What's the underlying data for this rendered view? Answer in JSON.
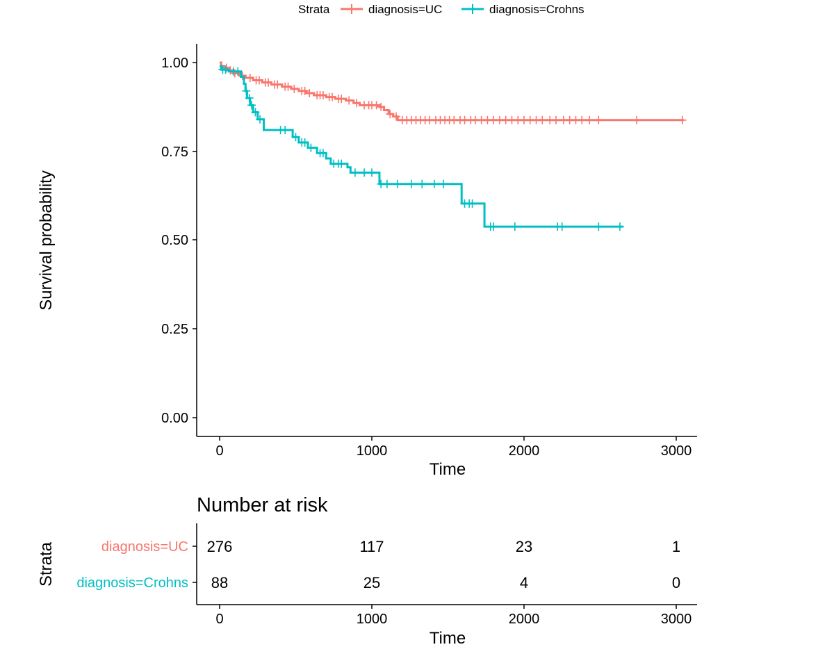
{
  "chart_data": {
    "type": "line",
    "subtype": "kaplan-meier",
    "legend": {
      "title": "Strata",
      "position": "top",
      "entries": [
        "diagnosis=UC",
        "diagnosis=Crohns"
      ]
    },
    "colors": {
      "UC": "#F8766D",
      "Crohns": "#00BFC4"
    },
    "ylabel": "Survival probability",
    "xlabel": "Time",
    "ylim": [
      0,
      1
    ],
    "xlim": [
      0,
      3000
    ],
    "yticks": [
      "0.00",
      "0.25",
      "0.50",
      "0.75",
      "1.00"
    ],
    "xticks": [
      "0",
      "1000",
      "2000",
      "3000"
    ],
    "series": [
      {
        "name": "diagnosis=UC",
        "steps": [
          [
            0,
            1.0
          ],
          [
            10,
            0.99
          ],
          [
            30,
            0.985
          ],
          [
            60,
            0.978
          ],
          [
            90,
            0.97
          ],
          [
            130,
            0.963
          ],
          [
            170,
            0.957
          ],
          [
            220,
            0.95
          ],
          [
            280,
            0.944
          ],
          [
            340,
            0.938
          ],
          [
            410,
            0.932
          ],
          [
            470,
            0.926
          ],
          [
            520,
            0.92
          ],
          [
            570,
            0.914
          ],
          [
            620,
            0.908
          ],
          [
            700,
            0.903
          ],
          [
            760,
            0.898
          ],
          [
            830,
            0.893
          ],
          [
            880,
            0.886
          ],
          [
            920,
            0.88
          ],
          [
            1050,
            0.875
          ],
          [
            1080,
            0.866
          ],
          [
            1110,
            0.855
          ],
          [
            1140,
            0.848
          ],
          [
            1170,
            0.838
          ],
          [
            3050,
            0.838
          ]
        ],
        "censors": [
          [
            45,
            0.985
          ],
          [
            70,
            0.978
          ],
          [
            100,
            0.97
          ],
          [
            150,
            0.963
          ],
          [
            200,
            0.957
          ],
          [
            240,
            0.95
          ],
          [
            260,
            0.95
          ],
          [
            300,
            0.944
          ],
          [
            320,
            0.944
          ],
          [
            360,
            0.938
          ],
          [
            380,
            0.938
          ],
          [
            430,
            0.932
          ],
          [
            450,
            0.932
          ],
          [
            490,
            0.926
          ],
          [
            540,
            0.92
          ],
          [
            560,
            0.92
          ],
          [
            590,
            0.914
          ],
          [
            640,
            0.908
          ],
          [
            660,
            0.908
          ],
          [
            680,
            0.908
          ],
          [
            720,
            0.903
          ],
          [
            740,
            0.903
          ],
          [
            780,
            0.898
          ],
          [
            800,
            0.898
          ],
          [
            850,
            0.893
          ],
          [
            900,
            0.886
          ],
          [
            950,
            0.88
          ],
          [
            980,
            0.88
          ],
          [
            1000,
            0.88
          ],
          [
            1030,
            0.88
          ],
          [
            1060,
            0.875
          ],
          [
            1120,
            0.855
          ],
          [
            1160,
            0.848
          ],
          [
            1200,
            0.838
          ],
          [
            1230,
            0.838
          ],
          [
            1260,
            0.838
          ],
          [
            1290,
            0.838
          ],
          [
            1320,
            0.838
          ],
          [
            1350,
            0.838
          ],
          [
            1380,
            0.838
          ],
          [
            1420,
            0.838
          ],
          [
            1450,
            0.838
          ],
          [
            1480,
            0.838
          ],
          [
            1510,
            0.838
          ],
          [
            1540,
            0.838
          ],
          [
            1580,
            0.838
          ],
          [
            1610,
            0.838
          ],
          [
            1650,
            0.838
          ],
          [
            1680,
            0.838
          ],
          [
            1720,
            0.838
          ],
          [
            1760,
            0.838
          ],
          [
            1800,
            0.838
          ],
          [
            1840,
            0.838
          ],
          [
            1880,
            0.838
          ],
          [
            1920,
            0.838
          ],
          [
            1960,
            0.838
          ],
          [
            2000,
            0.838
          ],
          [
            2040,
            0.838
          ],
          [
            2080,
            0.838
          ],
          [
            2120,
            0.838
          ],
          [
            2170,
            0.838
          ],
          [
            2210,
            0.838
          ],
          [
            2260,
            0.838
          ],
          [
            2300,
            0.838
          ],
          [
            2340,
            0.838
          ],
          [
            2380,
            0.838
          ],
          [
            2430,
            0.838
          ],
          [
            2490,
            0.838
          ],
          [
            2740,
            0.838
          ],
          [
            3040,
            0.838
          ]
        ]
      },
      {
        "name": "diagnosis=Crohns",
        "steps": [
          [
            0,
            0.99
          ],
          [
            10,
            0.98
          ],
          [
            60,
            0.975
          ],
          [
            140,
            0.96
          ],
          [
            160,
            0.94
          ],
          [
            170,
            0.92
          ],
          [
            180,
            0.9
          ],
          [
            200,
            0.88
          ],
          [
            220,
            0.86
          ],
          [
            250,
            0.84
          ],
          [
            290,
            0.81
          ],
          [
            480,
            0.79
          ],
          [
            520,
            0.775
          ],
          [
            580,
            0.76
          ],
          [
            640,
            0.745
          ],
          [
            700,
            0.73
          ],
          [
            730,
            0.715
          ],
          [
            840,
            0.705
          ],
          [
            860,
            0.69
          ],
          [
            1050,
            0.658
          ],
          [
            1590,
            0.603
          ],
          [
            1740,
            0.538
          ],
          [
            2650,
            0.538
          ]
        ],
        "censors": [
          [
            20,
            0.98
          ],
          [
            40,
            0.98
          ],
          [
            90,
            0.975
          ],
          [
            120,
            0.975
          ],
          [
            175,
            0.92
          ],
          [
            195,
            0.9
          ],
          [
            210,
            0.88
          ],
          [
            235,
            0.86
          ],
          [
            265,
            0.84
          ],
          [
            400,
            0.81
          ],
          [
            430,
            0.81
          ],
          [
            500,
            0.79
          ],
          [
            540,
            0.775
          ],
          [
            560,
            0.775
          ],
          [
            600,
            0.76
          ],
          [
            660,
            0.745
          ],
          [
            680,
            0.745
          ],
          [
            750,
            0.715
          ],
          [
            780,
            0.715
          ],
          [
            800,
            0.715
          ],
          [
            890,
            0.69
          ],
          [
            950,
            0.69
          ],
          [
            1000,
            0.69
          ],
          [
            1060,
            0.658
          ],
          [
            1100,
            0.658
          ],
          [
            1170,
            0.658
          ],
          [
            1260,
            0.658
          ],
          [
            1330,
            0.658
          ],
          [
            1410,
            0.658
          ],
          [
            1470,
            0.658
          ],
          [
            1610,
            0.603
          ],
          [
            1640,
            0.603
          ],
          [
            1660,
            0.603
          ],
          [
            1780,
            0.538
          ],
          [
            1800,
            0.538
          ],
          [
            1940,
            0.538
          ],
          [
            2220,
            0.538
          ],
          [
            2250,
            0.538
          ],
          [
            2490,
            0.538
          ],
          [
            2630,
            0.538
          ]
        ]
      }
    ],
    "risk_table": {
      "title": "Number at risk",
      "ylabel": "Strata",
      "xlabel": "Time",
      "times": [
        "0",
        "1000",
        "2000",
        "3000"
      ],
      "rows": [
        {
          "label": "diagnosis=UC",
          "counts": [
            "276",
            "117",
            "23",
            "1"
          ]
        },
        {
          "label": "diagnosis=Crohns",
          "counts": [
            "88",
            "25",
            "4",
            "0"
          ]
        }
      ]
    }
  }
}
